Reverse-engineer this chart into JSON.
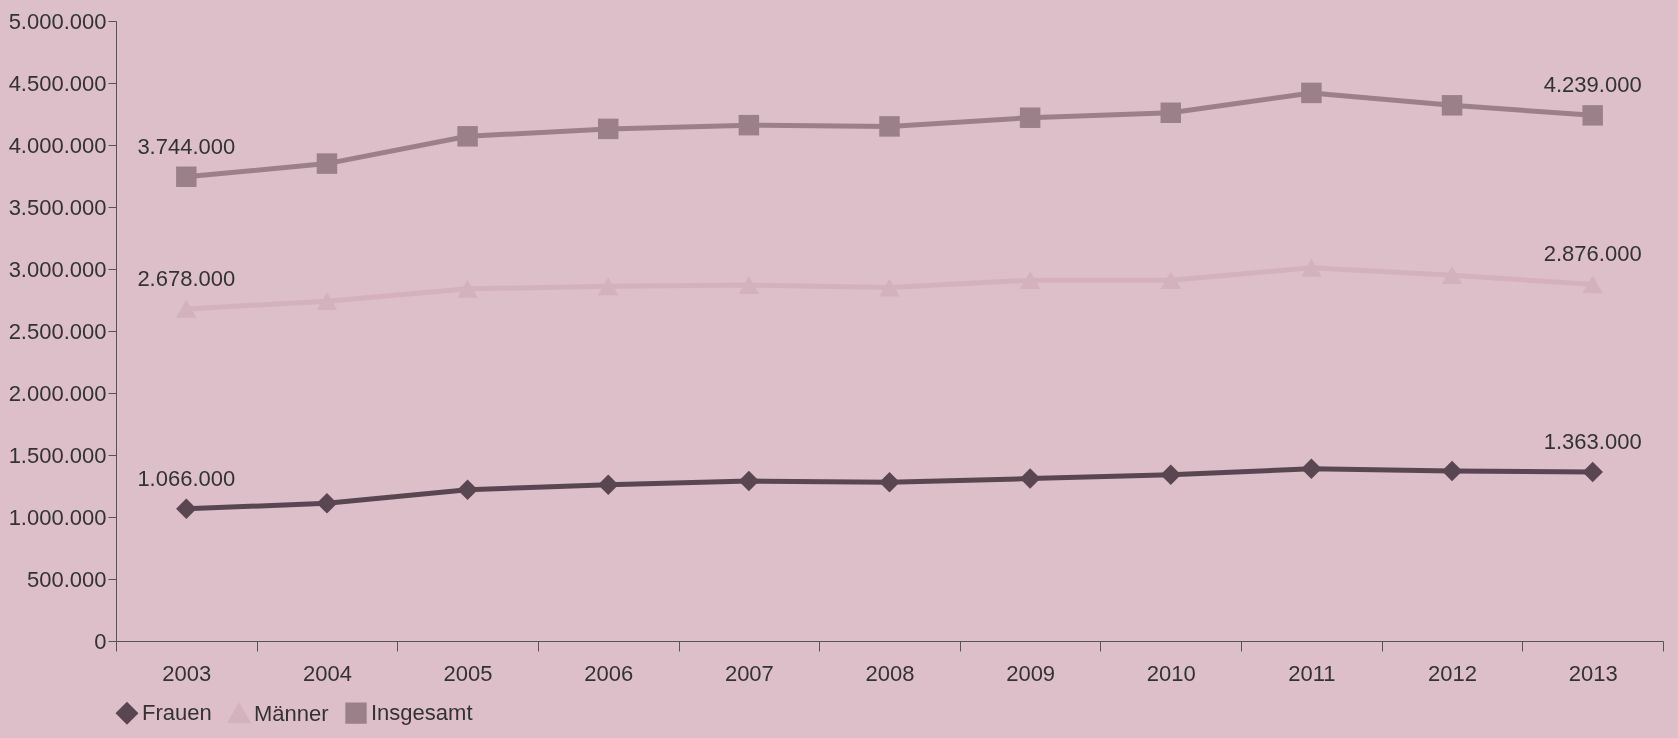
{
  "chart_data": {
    "type": "line",
    "categories": [
      "2003",
      "2004",
      "2005",
      "2006",
      "2007",
      "2008",
      "2009",
      "2010",
      "2011",
      "2012",
      "2013"
    ],
    "series": [
      {
        "name": "Frauen",
        "color": "#5a4650",
        "marker": "diamond",
        "values": [
          1066000,
          1110000,
          1220000,
          1260000,
          1290000,
          1280000,
          1310000,
          1340000,
          1390000,
          1370000,
          1363000
        ],
        "value_labels": [
          "1.066.000",
          null,
          null,
          null,
          null,
          null,
          null,
          null,
          null,
          null,
          "1.363.000"
        ]
      },
      {
        "name": "Männer",
        "color": "#d3b2bd",
        "marker": "triangle",
        "values": [
          2678000,
          2740000,
          2840000,
          2860000,
          2870000,
          2850000,
          2910000,
          2910000,
          3010000,
          2950000,
          2876000
        ],
        "value_labels": [
          "2.678.000",
          null,
          null,
          null,
          null,
          null,
          null,
          null,
          null,
          null,
          "2.876.000"
        ]
      },
      {
        "name": "Insgesamt",
        "color": "#9b808a",
        "marker": "square",
        "values": [
          3744000,
          3850000,
          4070000,
          4130000,
          4160000,
          4150000,
          4220000,
          4260000,
          4420000,
          4320000,
          4239000
        ],
        "value_labels": [
          "3.744.000",
          null,
          null,
          null,
          null,
          null,
          null,
          null,
          null,
          null,
          "4.239.000"
        ]
      }
    ],
    "ylim": [
      0,
      5000000
    ],
    "yticks": [
      {
        "value": 0,
        "label": "0"
      },
      {
        "value": 500000,
        "label": "500.000"
      },
      {
        "value": 1000000,
        "label": "1.000.000"
      },
      {
        "value": 1500000,
        "label": "1.500.000"
      },
      {
        "value": 2000000,
        "label": "2.000.000"
      },
      {
        "value": 2500000,
        "label": "2.500.000"
      },
      {
        "value": 3000000,
        "label": "3.000.000"
      },
      {
        "value": 3500000,
        "label": "3.500.000"
      },
      {
        "value": 4000000,
        "label": "4.000.000"
      },
      {
        "value": 4500000,
        "label": "4.500.000"
      },
      {
        "value": 5000000,
        "label": "5.000.000"
      }
    ],
    "grid": false,
    "legend": "bottom",
    "line_style": "solid"
  }
}
